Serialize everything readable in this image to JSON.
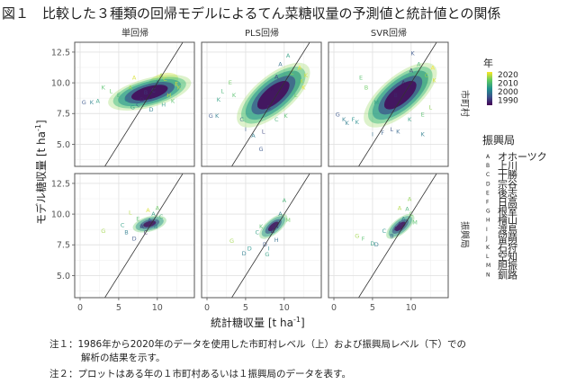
{
  "title": "図１　比較した３種類の回帰モデルによるてん菜糖収量の予測値と統計値との関係",
  "notes": [
    "注１：1986年から2020年のデータを使用した市町村レベル（上）および振興局レベル（下）での",
    "解析の結果を示す。",
    "注２：プロットはある年の１市町村あるいは１振興局のデータを表す。"
  ],
  "chart_data": {
    "type": "scatter",
    "facet_columns": [
      "単回帰",
      "PLS回帰",
      "SVR回帰"
    ],
    "facet_rows": [
      "市町村",
      "振興局"
    ],
    "xlabel": "統計糖収量 [t ha",
    "xlabel_sup": "-1",
    "xlabel_end": "]",
    "ylabel": "モデル糖収量 [t ha",
    "ylabel_sup": "-1",
    "ylabel_end": "]",
    "xlim": [
      -0.7,
      14.8
    ],
    "ylim": [
      3.2,
      13.3
    ],
    "x_ticks": [
      "0",
      "5",
      "10"
    ],
    "x_tick_values": [
      0,
      5,
      10
    ],
    "y_ticks": [
      "5.0",
      "7.5",
      "10.0",
      "12.5"
    ],
    "y_tick_values": [
      5.0,
      7.5,
      10.0,
      12.5
    ],
    "reference_line": "y = x",
    "grid": true,
    "color_legend": {
      "title": "年",
      "labels": [
        "2020",
        "2010",
        "2000",
        "1990"
      ],
      "range": [
        1986,
        2020
      ],
      "colormap": [
        "#440154",
        "#3b528b",
        "#21918c",
        "#5ec962",
        "#fde725"
      ]
    },
    "shape_legend": {
      "title": "振興局",
      "items": [
        {
          "code": "A",
          "name": "オホーツク"
        },
        {
          "code": "B",
          "name": "上川"
        },
        {
          "code": "C",
          "name": "十勝"
        },
        {
          "code": "D",
          "name": "宗谷"
        },
        {
          "code": "E",
          "name": "後志"
        },
        {
          "code": "F",
          "name": "日高"
        },
        {
          "code": "G",
          "name": "根室"
        },
        {
          "code": "H",
          "name": "檜山"
        },
        {
          "code": "I",
          "name": "渡島"
        },
        {
          "code": "J",
          "name": "留萌"
        },
        {
          "code": "K",
          "name": "石狩"
        },
        {
          "code": "L",
          "name": "空知"
        },
        {
          "code": "M",
          "name": "胆振"
        },
        {
          "code": "N",
          "name": "釧路"
        }
      ]
    },
    "panels": [
      {
        "column": "単回帰",
        "row": "市町村",
        "points": [
          [
            0.5,
            8.4,
            1995,
            "G"
          ],
          [
            1.5,
            8.4,
            2000,
            "K"
          ],
          [
            2.3,
            8.5,
            2005,
            "A"
          ],
          [
            3.0,
            9.6,
            2010,
            "K"
          ],
          [
            4.0,
            9.3,
            2012,
            "L"
          ],
          [
            5.0,
            9.0,
            2008,
            "E"
          ],
          [
            6.0,
            8.6,
            2003,
            "C"
          ],
          [
            6.5,
            9.6,
            2015,
            "A"
          ],
          [
            7.0,
            10.4,
            2018,
            "A"
          ],
          [
            7.5,
            8.2,
            1995,
            "C"
          ],
          [
            8.0,
            8.6,
            1990,
            "D"
          ],
          [
            8.5,
            9.2,
            1992,
            "B"
          ],
          [
            9.0,
            8.8,
            1988,
            "A"
          ],
          [
            9.5,
            9.4,
            1993,
            "C"
          ],
          [
            10.0,
            10.0,
            1998,
            "A"
          ],
          [
            10.5,
            10.6,
            2015,
            "A"
          ],
          [
            11.0,
            10.3,
            2018,
            "C"
          ],
          [
            11.5,
            9.0,
            2019,
            "H"
          ],
          [
            12.0,
            8.5,
            2010,
            "K"
          ],
          [
            12.5,
            9.9,
            2020,
            "E"
          ],
          [
            12.8,
            9.6,
            2017,
            "K"
          ],
          [
            10.8,
            8.2,
            2005,
            "H"
          ],
          [
            9.2,
            7.8,
            2000,
            "D"
          ],
          [
            6.8,
            8.0,
            2004,
            "G"
          ]
        ]
      },
      {
        "column": "PLS回帰",
        "row": "市町村",
        "points": [
          [
            0.5,
            7.3,
            1995,
            "G"
          ],
          [
            1.3,
            7.3,
            2000,
            "K"
          ],
          [
            1.5,
            8.6,
            2005,
            "K"
          ],
          [
            2.0,
            9.3,
            2008,
            "L"
          ],
          [
            3.0,
            10.0,
            2012,
            "E"
          ],
          [
            3.5,
            9.0,
            2010,
            "K"
          ],
          [
            4.5,
            7.0,
            1998,
            "C"
          ],
          [
            5.0,
            6.2,
            1996,
            "I"
          ],
          [
            6.0,
            5.7,
            2000,
            "A"
          ],
          [
            7.0,
            4.6,
            1995,
            "G"
          ],
          [
            7.3,
            6.0,
            1993,
            "L"
          ],
          [
            8.0,
            8.0,
            1990,
            "B"
          ],
          [
            8.5,
            9.5,
            1988,
            "A"
          ],
          [
            9.0,
            10.5,
            1992,
            "A"
          ],
          [
            9.5,
            11.5,
            1998,
            "A"
          ],
          [
            10.5,
            12.2,
            2005,
            "A"
          ],
          [
            11.0,
            10.8,
            2015,
            "C"
          ],
          [
            12.0,
            11.2,
            2020,
            "A"
          ],
          [
            12.8,
            10.6,
            2018,
            "K"
          ],
          [
            12.3,
            10.1,
            2016,
            "K"
          ],
          [
            11.5,
            9.0,
            2012,
            "L"
          ],
          [
            10.2,
            7.3,
            2010,
            "K"
          ],
          [
            9.0,
            7.0,
            2008,
            "C"
          ],
          [
            12.5,
            9.6,
            2019,
            "K"
          ]
        ]
      },
      {
        "column": "SVR回帰",
        "row": "市町村",
        "points": [
          [
            0.5,
            7.4,
            1995,
            "G"
          ],
          [
            1.3,
            7.0,
            2000,
            "K"
          ],
          [
            1.7,
            6.7,
            2000,
            "K"
          ],
          [
            2.5,
            7.0,
            2003,
            "F"
          ],
          [
            3.0,
            6.8,
            2002,
            "K"
          ],
          [
            3.5,
            10.4,
            2010,
            "E"
          ],
          [
            4.2,
            9.6,
            2012,
            "B"
          ],
          [
            5.0,
            5.8,
            1998,
            "I"
          ],
          [
            5.5,
            8.4,
            2005,
            "M"
          ],
          [
            6.3,
            5.9,
            1996,
            "F"
          ],
          [
            7.5,
            6.2,
            1995,
            "L"
          ],
          [
            8.3,
            6.0,
            1997,
            "K"
          ],
          [
            8.0,
            9.0,
            1990,
            "B"
          ],
          [
            9.0,
            10.0,
            1988,
            "A"
          ],
          [
            10.0,
            11.0,
            1992,
            "A"
          ],
          [
            10.2,
            12.4,
            1995,
            "K"
          ],
          [
            11.0,
            11.5,
            2008,
            "A"
          ],
          [
            12.0,
            10.6,
            2015,
            "C"
          ],
          [
            12.8,
            11.2,
            2020,
            "A"
          ],
          [
            13.0,
            10.2,
            2018,
            "K"
          ],
          [
            12.5,
            8.0,
            2014,
            "L"
          ],
          [
            11.5,
            7.4,
            2010,
            "E"
          ],
          [
            9.8,
            7.0,
            2005,
            "K"
          ],
          [
            11.5,
            5.8,
            2000,
            "K"
          ]
        ]
      },
      {
        "column": "単回帰",
        "row": "振興局",
        "points": [
          [
            3.0,
            8.6,
            2015,
            "G"
          ],
          [
            5.5,
            9.1,
            2005,
            "C"
          ],
          [
            6.0,
            8.5,
            2000,
            "B"
          ],
          [
            7.0,
            8.0,
            1995,
            "D"
          ],
          [
            7.5,
            9.6,
            2010,
            "E"
          ],
          [
            8.0,
            9.0,
            1992,
            "A"
          ],
          [
            8.5,
            8.5,
            1990,
            "C"
          ],
          [
            9.0,
            9.5,
            1995,
            "A"
          ],
          [
            9.5,
            10.0,
            2005,
            "A"
          ],
          [
            10.0,
            10.5,
            2012,
            "A"
          ],
          [
            10.5,
            9.8,
            2008,
            "C"
          ],
          [
            9.8,
            9.0,
            2000,
            "B"
          ],
          [
            8.8,
            10.3,
            2018,
            "A"
          ],
          [
            6.5,
            10.1,
            2016,
            "L"
          ]
        ]
      },
      {
        "column": "PLS回帰",
        "row": "振興局",
        "points": [
          [
            3.2,
            7.8,
            2015,
            "G"
          ],
          [
            4.8,
            6.8,
            2000,
            "D"
          ],
          [
            5.5,
            7.2,
            2003,
            "D"
          ],
          [
            6.5,
            8.5,
            2005,
            "C"
          ],
          [
            7.0,
            9.0,
            2010,
            "K"
          ],
          [
            7.5,
            7.5,
            1995,
            "D"
          ],
          [
            7.8,
            6.7,
            2005,
            "G"
          ],
          [
            8.5,
            8.6,
            1990,
            "B"
          ],
          [
            9.0,
            9.0,
            1992,
            "A"
          ],
          [
            9.5,
            10.0,
            2000,
            "A"
          ],
          [
            10.0,
            11.1,
            2008,
            "A"
          ],
          [
            10.5,
            9.5,
            2012,
            "M"
          ],
          [
            9.0,
            7.9,
            1998,
            "H"
          ],
          [
            8.0,
            7.2,
            2002,
            "I"
          ]
        ]
      },
      {
        "column": "SVR回帰",
        "row": "振興局",
        "points": [
          [
            3.0,
            8.2,
            2015,
            "G"
          ],
          [
            3.8,
            8.0,
            2010,
            "F"
          ],
          [
            5.0,
            7.6,
            2005,
            "D"
          ],
          [
            5.5,
            7.5,
            2000,
            "D"
          ],
          [
            6.5,
            8.6,
            2003,
            "C"
          ],
          [
            7.5,
            8.2,
            1995,
            "B"
          ],
          [
            8.0,
            8.8,
            1990,
            "A"
          ],
          [
            8.5,
            9.2,
            1992,
            "A"
          ],
          [
            9.0,
            9.6,
            2000,
            "A"
          ],
          [
            9.5,
            10.4,
            2008,
            "A"
          ],
          [
            10.0,
            10.0,
            2012,
            "C"
          ],
          [
            10.5,
            9.3,
            2010,
            "M"
          ],
          [
            8.5,
            10.5,
            2016,
            "A"
          ],
          [
            9.8,
            11.2,
            2014,
            "A"
          ]
        ]
      }
    ]
  }
}
